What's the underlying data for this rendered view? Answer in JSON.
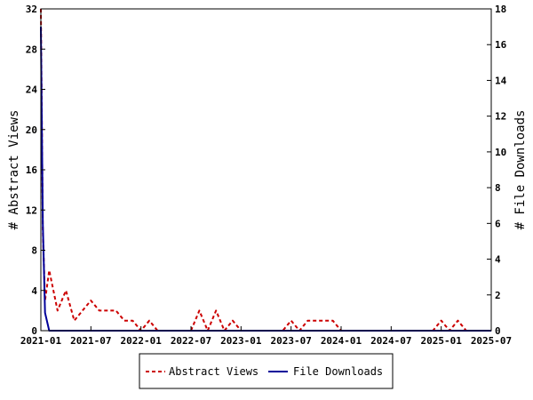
{
  "chart_data": {
    "type": "line",
    "title": "",
    "xlabel": "",
    "ylabel_left": "# Abstract Views",
    "ylabel_right": "# File Downloads",
    "ylim_left": [
      0,
      32
    ],
    "ylim_right": [
      0,
      18
    ],
    "yticks_left": [
      "0",
      "4",
      "8",
      "12",
      "16",
      "20",
      "24",
      "28",
      "32"
    ],
    "yticks_right": [
      "0",
      "2",
      "4",
      "6",
      "8",
      "10",
      "12",
      "14",
      "16",
      "18"
    ],
    "xlim": [
      "2021-01",
      "2025-07"
    ],
    "xticks": [
      "2021-01",
      "2021-07",
      "2022-01",
      "2022-07",
      "2023-01",
      "2023-07",
      "2024-01",
      "2024-07",
      "2025-01",
      "2025-07"
    ],
    "grid": false,
    "legend_position": "bottom",
    "series": [
      {
        "name": "Abstract Views",
        "axis": "left",
        "color": "#cc0000",
        "style": "dashed",
        "x": [
          "2021-01-01",
          "2021-01-08",
          "2021-01-16",
          "2021-02",
          "2021-03",
          "2021-04",
          "2021-05",
          "2021-06",
          "2021-07",
          "2021-08",
          "2021-09",
          "2021-10",
          "2021-11",
          "2021-12",
          "2022-01",
          "2022-02",
          "2022-03",
          "2022-04",
          "2022-05",
          "2022-06",
          "2022-07",
          "2022-08",
          "2022-09",
          "2022-10",
          "2022-11",
          "2022-12",
          "2023-01",
          "2023-02",
          "2023-03",
          "2023-04",
          "2023-05",
          "2023-06",
          "2023-07",
          "2023-08",
          "2023-09",
          "2023-10",
          "2023-11",
          "2023-12",
          "2024-01",
          "2024-02",
          "2024-03",
          "2024-04",
          "2024-05",
          "2024-06",
          "2024-07",
          "2024-08",
          "2024-09",
          "2024-10",
          "2024-11",
          "2024-12",
          "2025-01",
          "2025-02",
          "2025-03",
          "2025-04",
          "2025-05",
          "2025-06",
          "2025-07"
        ],
        "values": [
          32,
          10,
          3,
          6,
          2,
          4,
          1,
          2,
          3,
          2,
          2,
          2,
          1,
          1,
          0,
          1,
          0,
          0,
          0,
          0,
          0,
          2,
          0,
          2,
          0,
          1,
          0,
          0,
          0,
          0,
          0,
          0,
          1,
          0,
          1,
          1,
          1,
          1,
          0,
          0,
          0,
          0,
          0,
          0,
          0,
          0,
          0,
          0,
          0,
          0,
          1,
          0,
          1,
          0,
          0,
          0,
          0
        ]
      },
      {
        "name": "File Downloads",
        "axis": "right",
        "color": "#000099",
        "style": "solid",
        "x": [
          "2021-01-01",
          "2021-01-08",
          "2021-01-16",
          "2021-02",
          "2021-03",
          "2021-04",
          "2021-05",
          "2021-06",
          "2021-07",
          "2021-08",
          "2021-09",
          "2021-10",
          "2021-11",
          "2021-12",
          "2022-01",
          "2022-02",
          "2022-03",
          "2022-04",
          "2022-05",
          "2022-06",
          "2022-07",
          "2022-08",
          "2022-09",
          "2022-10",
          "2022-11",
          "2022-12",
          "2023-01",
          "2023-02",
          "2023-03",
          "2023-04",
          "2023-05",
          "2023-06",
          "2023-07",
          "2023-08",
          "2023-09",
          "2023-10",
          "2023-11",
          "2023-12",
          "2024-01",
          "2024-02",
          "2024-03",
          "2024-04",
          "2024-05",
          "2024-06",
          "2024-07",
          "2024-08",
          "2024-09",
          "2024-10",
          "2024-11",
          "2024-12",
          "2025-01",
          "2025-02",
          "2025-03",
          "2025-04",
          "2025-05",
          "2025-06",
          "2025-07"
        ],
        "values": [
          17,
          6,
          1,
          0,
          0,
          0,
          0,
          0,
          0,
          0,
          0,
          0,
          0,
          0,
          0,
          0,
          0,
          0,
          0,
          0,
          0,
          0,
          0,
          0,
          0,
          0,
          0,
          0,
          0,
          0,
          0,
          0,
          0,
          0,
          0,
          0,
          0,
          0,
          0,
          0,
          0,
          0,
          0,
          0,
          0,
          0,
          0,
          0,
          0,
          0,
          0,
          0,
          0,
          0,
          0,
          0,
          0
        ]
      }
    ]
  }
}
